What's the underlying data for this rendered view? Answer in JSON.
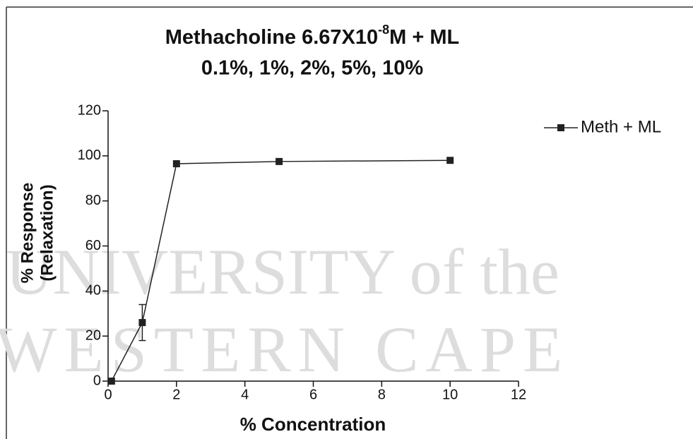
{
  "chart_data": {
    "type": "line",
    "title_parts": [
      "Methacholine 6.67X10",
      "-8",
      "M + ML"
    ],
    "subtitle": "0.1%, 1%, 2%, 5%, 10%",
    "watermark": [
      "UNIVERSITY of the",
      "WESTERN CAPE"
    ],
    "xlabel": "% Concentration",
    "ylabel": [
      "% Response",
      "(Relaxation)"
    ],
    "x": [
      0.1,
      1,
      2,
      5,
      10
    ],
    "series": [
      {
        "name": "Meth + ML",
        "color": "#222222",
        "values": [
          0,
          26,
          96.5,
          97.5,
          98
        ],
        "errors": [
          null,
          8,
          null,
          null,
          null
        ]
      }
    ],
    "xlim": [
      0,
      12
    ],
    "xticks": [
      0,
      2,
      4,
      6,
      8,
      10,
      12
    ],
    "ylim": [
      0,
      120
    ],
    "yticks": [
      0,
      20,
      40,
      60,
      80,
      100,
      120
    ],
    "legend": "right"
  }
}
